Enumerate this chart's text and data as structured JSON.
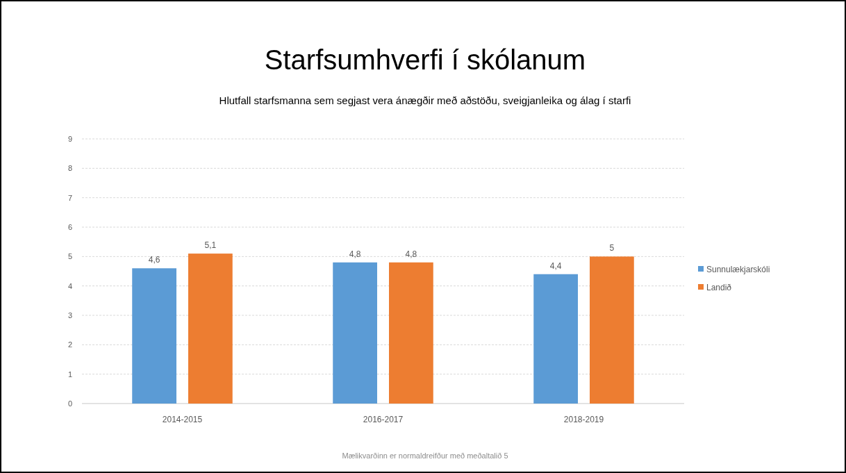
{
  "chart_data": {
    "type": "bar",
    "title": "Starfsumhverfi í skólanum",
    "subtitle": "Hlutfall starfsmanna sem segjast vera ánægðir með aðstöðu, sveigjanleika og álag í starfi",
    "categories": [
      "2014-2015",
      "2016-2017",
      "2018-2019"
    ],
    "series": [
      {
        "name": "Sunnulækjarskóli",
        "color": "#5b9bd5",
        "values": [
          4.6,
          4.8,
          4.4
        ]
      },
      {
        "name": "Landið",
        "color": "#ed7d31",
        "values": [
          5.1,
          4.8,
          5
        ]
      }
    ],
    "value_labels": [
      [
        "4,6",
        "4,8",
        "4,4"
      ],
      [
        "5,1",
        "4,8",
        "5"
      ]
    ],
    "ylim": [
      0,
      9
    ],
    "yticks": [
      0,
      1,
      2,
      3,
      4,
      5,
      6,
      7,
      8,
      9
    ],
    "grid": "y",
    "legend": "right",
    "annotations": [
      "Mælikvarðinn er normaldreifður með meðaltalið 5"
    ]
  }
}
